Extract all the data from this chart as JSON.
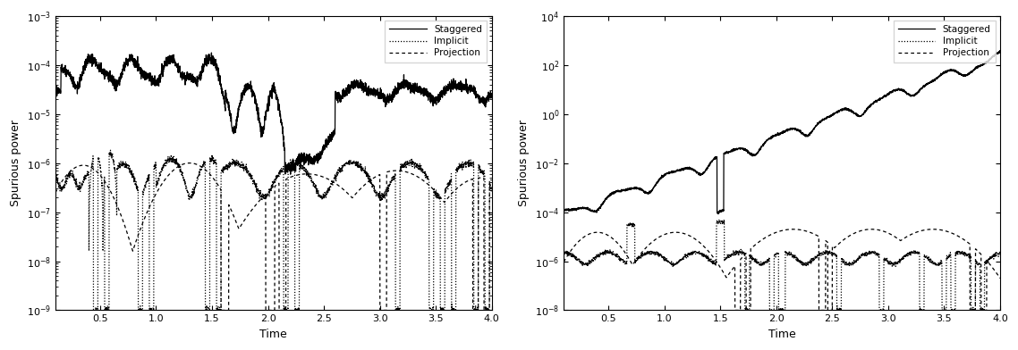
{
  "left_plot": {
    "xlabel": "Time",
    "ylabel": "Spurious power",
    "xlim": [
      0.1,
      4.0
    ],
    "ylim_log": [
      1e-09,
      0.001
    ],
    "xticks": [
      0.5,
      1.0,
      1.5,
      2.0,
      2.5,
      3.0,
      3.5,
      4.0
    ],
    "legend_labels": [
      "Staggered",
      "Implicit",
      "Projection"
    ]
  },
  "right_plot": {
    "xlabel": "Time",
    "ylabel": "Spurious power",
    "xlim": [
      0.1,
      4.0
    ],
    "ylim_log": [
      1e-08,
      10000
    ],
    "xticks": [
      0.5,
      1.0,
      1.5,
      2.0,
      2.5,
      3.0,
      3.5,
      4.0
    ],
    "legend_labels": [
      "Staggered",
      "Implicit",
      "Projection"
    ]
  },
  "background_color": "#ffffff",
  "line_color": "#000000"
}
